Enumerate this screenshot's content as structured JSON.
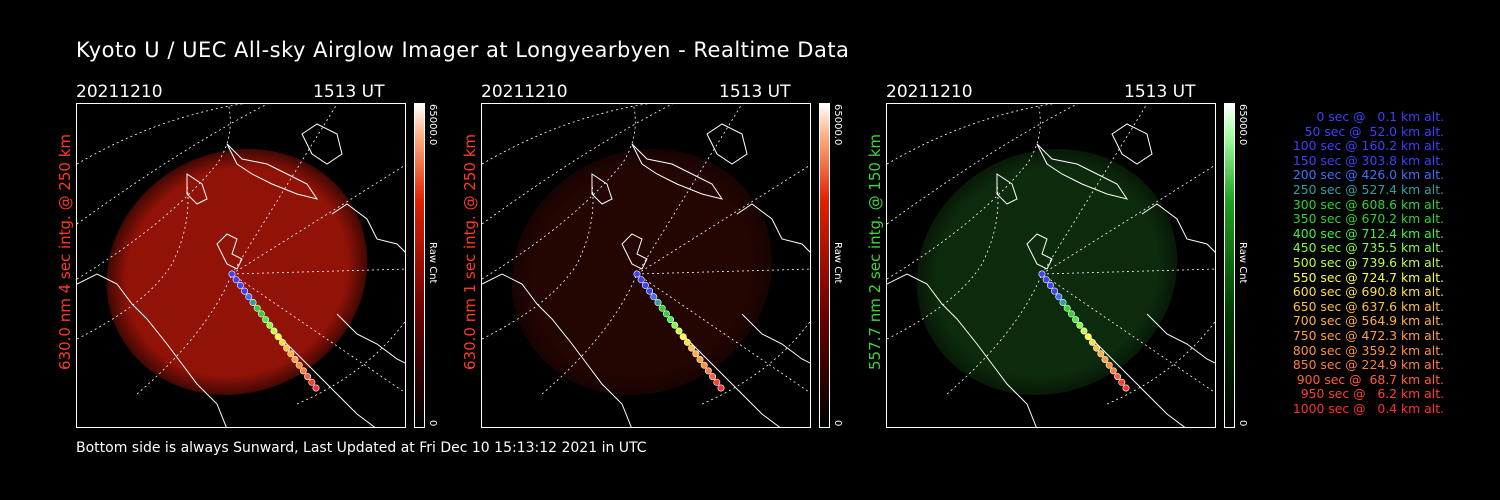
{
  "title": "Kyoto U / UEC All-sky Airglow Imager at Longyearbyen - Realtime Data",
  "footer": "Bottom side is always Sunward, Last Updated at Fri Dec 10 15:13:12 2021 in UTC",
  "panels": [
    {
      "date": "20211210",
      "time": "1513 UT",
      "side_label": "630.0 nm 4 sec intg. @ 250 km",
      "side_color": "#ff3b1f",
      "cbar_max": "65000.0",
      "cbar_min": "0",
      "cbar_unit": "Raw Cnt",
      "image_color": "#a11408",
      "intensity": 0.9
    },
    {
      "date": "20211210",
      "time": "1513 UT",
      "side_label": "630.0 nm 1 sec intg. @ 250 km",
      "side_color": "#ff3b1f",
      "cbar_max": "65000.0",
      "cbar_min": "0",
      "cbar_unit": "Raw Cnt",
      "image_color": "#3a0804",
      "intensity": 0.6
    },
    {
      "date": "20211210",
      "time": "1513 UT",
      "side_label": "557.7 nm 2 sec intg. @ 150 km",
      "side_color": "#3fd43f",
      "cbar_max": "65000.0",
      "cbar_min": "0",
      "cbar_unit": "Raw Cnt",
      "image_color": "#123d12",
      "intensity": 0.7
    }
  ],
  "legend": [
    {
      "text": "0 sec @   0.1 km alt.",
      "color": "#3f3fff"
    },
    {
      "text": "50 sec @  52.0 km alt.",
      "color": "#3f3fff"
    },
    {
      "text": "100 sec @ 160.2 km alt.",
      "color": "#3f3fff"
    },
    {
      "text": "150 sec @ 303.8 km alt.",
      "color": "#3f3fff"
    },
    {
      "text": "200 sec @ 426.0 km alt.",
      "color": "#3f6fff"
    },
    {
      "text": "250 sec @ 527.4 km alt.",
      "color": "#2fa0a0"
    },
    {
      "text": "300 sec @ 608.6 km alt.",
      "color": "#2fd42f"
    },
    {
      "text": "350 sec @ 670.2 km alt.",
      "color": "#2fd42f"
    },
    {
      "text": "400 sec @ 712.4 km alt.",
      "color": "#3ff03f"
    },
    {
      "text": "450 sec @ 735.5 km alt.",
      "color": "#7fff3f"
    },
    {
      "text": "500 sec @ 739.6 km alt.",
      "color": "#bfff3f"
    },
    {
      "text": "550 sec @ 724.7 km alt.",
      "color": "#ffff3f"
    },
    {
      "text": "600 sec @ 690.8 km alt.",
      "color": "#ffdf3f"
    },
    {
      "text": "650 sec @ 637.6 km alt.",
      "color": "#ffbf3f"
    },
    {
      "text": "700 sec @ 564.9 km alt.",
      "color": "#ffaf3f"
    },
    {
      "text": "750 sec @ 472.3 km alt.",
      "color": "#ff9f3f"
    },
    {
      "text": "800 sec @ 359.2 km alt.",
      "color": "#ff8f3f"
    },
    {
      "text": "850 sec @ 224.9 km alt.",
      "color": "#ff7f3f"
    },
    {
      "text": "900 sec @  68.7 km alt.",
      "color": "#ff5f3f"
    },
    {
      "text": "950 sec @   6.2 km alt.",
      "color": "#ff3f2f"
    },
    {
      "text": "1000 sec @   0.4 km alt.",
      "color": "#ff2f2f"
    }
  ]
}
